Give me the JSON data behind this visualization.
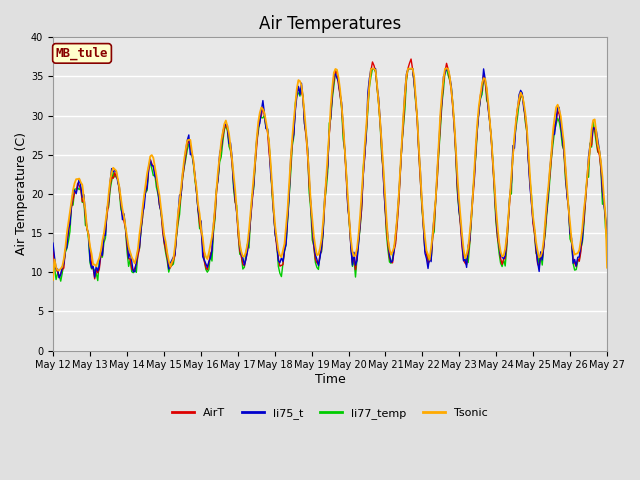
{
  "title": "Air Temperatures",
  "xlabel": "Time",
  "ylabel": "Air Temperature (C)",
  "annotation_text": "MB_tule",
  "legend_labels": [
    "AirT",
    "li75_t",
    "li77_temp",
    "Tsonic"
  ],
  "line_colors": [
    "#dd0000",
    "#0000cc",
    "#00cc00",
    "#ffaa00"
  ],
  "ylim": [
    0,
    40
  ],
  "y_ticks": [
    0,
    5,
    10,
    15,
    20,
    25,
    30,
    35,
    40
  ],
  "x_tick_labels": [
    "May 12",
    "May 13",
    "May 14",
    "May 15",
    "May 16",
    "May 17",
    "May 18",
    "May 19",
    "May 20",
    "May 21",
    "May 22",
    "May 23",
    "May 24",
    "May 25",
    "May 26",
    "May 27"
  ],
  "background_color": "#e0e0e0",
  "axes_bg_color": "#e8e8e8",
  "annotation_bg": "#ffffcc",
  "annotation_border": "#880000",
  "annotation_text_color": "#880000",
  "annotation_fontsize": 9,
  "title_fontsize": 12,
  "axis_label_fontsize": 9,
  "tick_fontsize": 7,
  "legend_fontsize": 8,
  "figwidth": 6.4,
  "figheight": 4.8,
  "dpi": 100
}
